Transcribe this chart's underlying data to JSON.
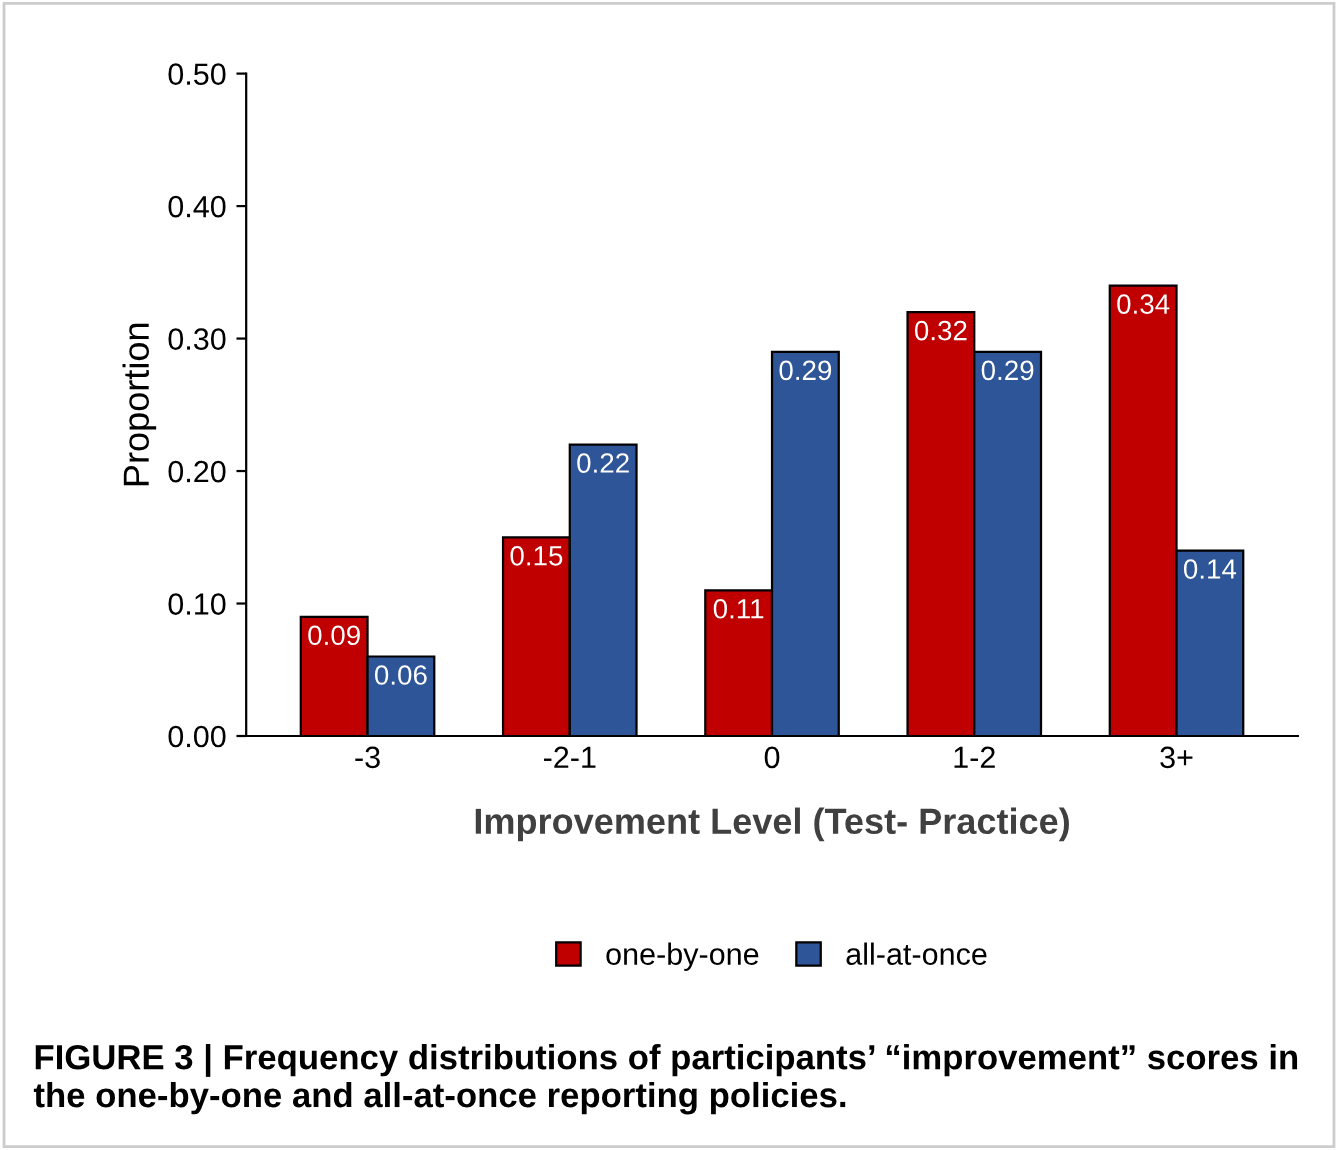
{
  "chart_data": {
    "type": "bar",
    "ylabel": "Proportion",
    "xlabel": "Improvement Level (Test- Practice)",
    "categories": [
      "-3",
      "-2-1",
      "0",
      "1-2",
      "3+"
    ],
    "series": [
      {
        "name": "one-by-one",
        "color": "#c00000",
        "values": [
          0.09,
          0.15,
          0.11,
          0.32,
          0.34
        ]
      },
      {
        "name": "all-at-once",
        "color": "#2e5597",
        "values": [
          0.06,
          0.22,
          0.29,
          0.29,
          0.14
        ]
      }
    ],
    "ylim": [
      0,
      0.5
    ],
    "yticks": [
      {
        "value": 0,
        "label": "0.00"
      },
      {
        "value": 0.1,
        "label": "0.10"
      },
      {
        "value": 0.2,
        "label": "0.20"
      },
      {
        "value": 0.3,
        "label": "0.30"
      },
      {
        "value": 0.4,
        "label": "0.40"
      },
      {
        "value": 0.5,
        "label": "0.50"
      }
    ],
    "grid": false,
    "legend": "bottom",
    "data_labels": true,
    "annotations": [
      "FIGURE 3 | Frequency distributions of participants’ “improvement” scores in the one-by-one and all-at-once reporting policies."
    ]
  }
}
